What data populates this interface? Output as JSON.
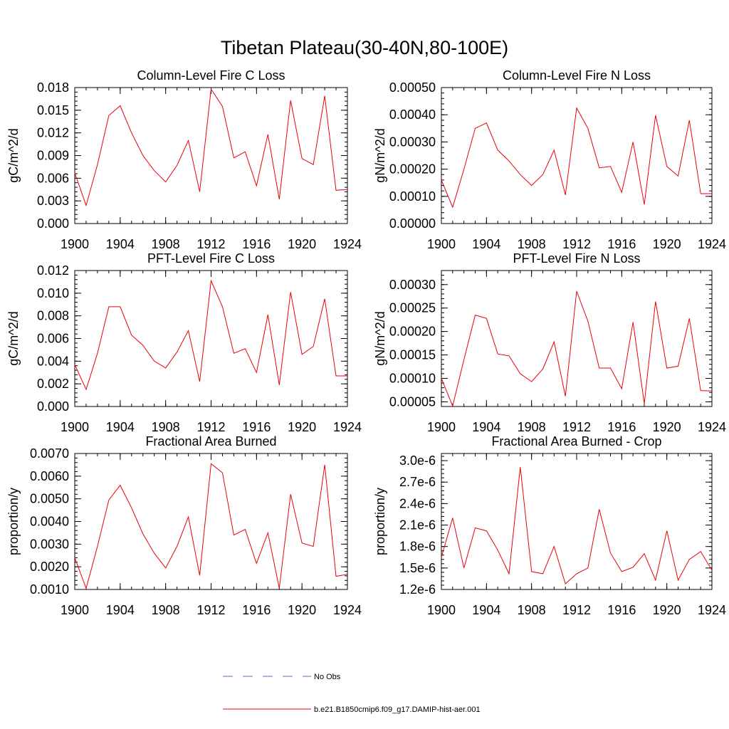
{
  "figure": {
    "title": "Tibetan Plateau(30-40N,80-100E)"
  },
  "legend": {
    "items": [
      {
        "label": "No Obs",
        "color": "#5b6ec8",
        "dash": true
      },
      {
        "label": "b.e21.B1850cmip6.f09_g17.DAMIP-hist-aer.001",
        "color": "#e8000b",
        "dash": false
      }
    ]
  },
  "series_color": "#e8000b",
  "chart_data": [
    {
      "type": "line",
      "title": "Column-Level Fire C Loss",
      "ylabel": "gC/m^2/d",
      "xlim": [
        1900,
        1924
      ],
      "ylim": [
        0,
        0.018
      ],
      "xticks": [
        "1900",
        "1904",
        "1908",
        "1912",
        "1916",
        "1920",
        "1924"
      ],
      "yticks": [
        "0.000",
        "0.003",
        "0.006",
        "0.009",
        "0.012",
        "0.015",
        "0.018"
      ],
      "x": [
        1900,
        1901,
        1902,
        1903,
        1904,
        1905,
        1906,
        1907,
        1908,
        1909,
        1910,
        1911,
        1912,
        1913,
        1914,
        1915,
        1916,
        1917,
        1918,
        1919,
        1920,
        1921,
        1922,
        1923,
        1924
      ],
      "series": [
        {
          "values": [
            0.0067,
            0.0024,
            0.0078,
            0.0143,
            0.0156,
            0.012,
            0.009,
            0.007,
            0.0055,
            0.0077,
            0.011,
            0.0042,
            0.0178,
            0.0155,
            0.0087,
            0.0095,
            0.005,
            0.0118,
            0.0032,
            0.0163,
            0.0086,
            0.0078,
            0.0169,
            0.0044,
            0.0045
          ]
        }
      ]
    },
    {
      "type": "line",
      "title": "Column-Level Fire N Loss",
      "ylabel": "gN/m^2/d",
      "xlim": [
        1900,
        1924
      ],
      "ylim": [
        0,
        0.0005
      ],
      "xticks": [
        "1900",
        "1904",
        "1908",
        "1912",
        "1916",
        "1920",
        "1924"
      ],
      "yticks": [
        "0.00000",
        "0.00010",
        "0.00020",
        "0.00030",
        "0.00040",
        "0.00050"
      ],
      "x": [
        1900,
        1901,
        1902,
        1903,
        1904,
        1905,
        1906,
        1907,
        1908,
        1909,
        1910,
        1911,
        1912,
        1913,
        1914,
        1915,
        1916,
        1917,
        1918,
        1919,
        1920,
        1921,
        1922,
        1923,
        1924
      ],
      "series": [
        {
          "values": [
            0.00016,
            6e-05,
            0.0002,
            0.00035,
            0.00037,
            0.00027,
            0.00023,
            0.00018,
            0.00014,
            0.00018,
            0.00027,
            0.000105,
            0.000425,
            0.00035,
            0.000205,
            0.00021,
            0.000115,
            0.0003,
            7e-05,
            0.000398,
            0.00021,
            0.000175,
            0.00038,
            0.00011,
            0.00011
          ]
        }
      ]
    },
    {
      "type": "line",
      "title": "PFT-Level Fire C Loss",
      "ylabel": "gC/m^2/d",
      "xlim": [
        1900,
        1924
      ],
      "ylim": [
        0,
        0.012
      ],
      "xticks": [
        "1900",
        "1904",
        "1908",
        "1912",
        "1916",
        "1920",
        "1924"
      ],
      "yticks": [
        "0.000",
        "0.002",
        "0.004",
        "0.006",
        "0.008",
        "0.010",
        "0.012"
      ],
      "x": [
        1900,
        1901,
        1902,
        1903,
        1904,
        1905,
        1906,
        1907,
        1908,
        1909,
        1910,
        1911,
        1912,
        1913,
        1914,
        1915,
        1916,
        1917,
        1918,
        1919,
        1920,
        1921,
        1922,
        1923,
        1924
      ],
      "series": [
        {
          "values": [
            0.0037,
            0.0015,
            0.0047,
            0.0088,
            0.0088,
            0.0063,
            0.0054,
            0.004,
            0.0034,
            0.0048,
            0.0067,
            0.0022,
            0.0111,
            0.0088,
            0.0047,
            0.0051,
            0.003,
            0.0081,
            0.0019,
            0.0101,
            0.0046,
            0.0053,
            0.0095,
            0.0027,
            0.0027
          ]
        }
      ]
    },
    {
      "type": "line",
      "title": "PFT-Level Fire N Loss",
      "ylabel": "gN/m^2/d",
      "xlim": [
        1900,
        1924
      ],
      "ylim": [
        4e-05,
        0.00033
      ],
      "xticks": [
        "1900",
        "1904",
        "1908",
        "1912",
        "1916",
        "1920",
        "1924"
      ],
      "yticks": [
        "0.00005",
        "0.00010",
        "0.00015",
        "0.00020",
        "0.00025",
        "0.00030"
      ],
      "yticks_values": [
        5e-05,
        0.0001,
        0.00015,
        0.0002,
        0.00025,
        0.0003
      ],
      "x": [
        1900,
        1901,
        1902,
        1903,
        1904,
        1905,
        1906,
        1907,
        1908,
        1909,
        1910,
        1911,
        1912,
        1913,
        1914,
        1915,
        1916,
        1917,
        1918,
        1919,
        1920,
        1921,
        1922,
        1923,
        1924
      ],
      "series": [
        {
          "values": [
            0.0001,
            4.1e-05,
            0.00014,
            0.000235,
            0.000228,
            0.000152,
            0.000148,
            0.00011,
            9.3e-05,
            0.00012,
            0.000178,
            6.2e-05,
            0.000286,
            0.000222,
            0.000122,
            0.000122,
            7.8e-05,
            0.00022,
            4.6e-05,
            0.000264,
            0.000122,
            0.000126,
            0.000228,
            7.4e-05,
            7.3e-05
          ]
        }
      ]
    },
    {
      "type": "line",
      "title": "Fractional Area Burned",
      "ylabel": "proportion/y",
      "xlim": [
        1900,
        1924
      ],
      "ylim": [
        0.001,
        0.007
      ],
      "xticks": [
        "1900",
        "1904",
        "1908",
        "1912",
        "1916",
        "1920",
        "1924"
      ],
      "yticks": [
        "0.0010",
        "0.0020",
        "0.0030",
        "0.0040",
        "0.0050",
        "0.0060",
        "0.0070"
      ],
      "x": [
        1900,
        1901,
        1902,
        1903,
        1904,
        1905,
        1906,
        1907,
        1908,
        1909,
        1910,
        1911,
        1912,
        1913,
        1914,
        1915,
        1916,
        1917,
        1918,
        1919,
        1920,
        1921,
        1922,
        1923,
        1924
      ],
      "series": [
        {
          "values": [
            0.0024,
            0.00105,
            0.0029,
            0.00495,
            0.0056,
            0.0046,
            0.00345,
            0.0026,
            0.00195,
            0.0029,
            0.0042,
            0.00162,
            0.00655,
            0.00615,
            0.0034,
            0.00365,
            0.00215,
            0.0035,
            0.00105,
            0.0052,
            0.00305,
            0.0029,
            0.0065,
            0.00158,
            0.00167
          ]
        }
      ]
    },
    {
      "type": "line",
      "title": "Fractional Area Burned - Crop",
      "ylabel": "proportion/y",
      "xlim": [
        1900,
        1924
      ],
      "ylim": [
        1.2e-06,
        3.1e-06
      ],
      "xticks": [
        "1900",
        "1904",
        "1908",
        "1912",
        "1916",
        "1920",
        "1924"
      ],
      "yticks": [
        "1.2e-6",
        "1.5e-6",
        "1.8e-6",
        "2.1e-6",
        "2.4e-6",
        "2.7e-6",
        "3.0e-6"
      ],
      "yticks_values": [
        1.2e-06,
        1.5e-06,
        1.8e-06,
        2.1e-06,
        2.4e-06,
        2.7e-06,
        3e-06
      ],
      "x": [
        1900,
        1901,
        1902,
        1903,
        1904,
        1905,
        1906,
        1907,
        1908,
        1909,
        1910,
        1911,
        1912,
        1913,
        1914,
        1915,
        1916,
        1917,
        1918,
        1919,
        1920,
        1921,
        1922,
        1923,
        1924
      ],
      "series": [
        {
          "values": [
            1.65e-06,
            2.2e-06,
            1.5e-06,
            2.06e-06,
            2.02e-06,
            1.75e-06,
            1.42e-06,
            2.91e-06,
            1.45e-06,
            1.42e-06,
            1.8e-06,
            1.28e-06,
            1.42e-06,
            1.5e-06,
            2.32e-06,
            1.71e-06,
            1.45e-06,
            1.51e-06,
            1.7e-06,
            1.33e-06,
            2.02e-06,
            1.33e-06,
            1.62e-06,
            1.73e-06,
            1.47e-06
          ]
        }
      ]
    }
  ]
}
